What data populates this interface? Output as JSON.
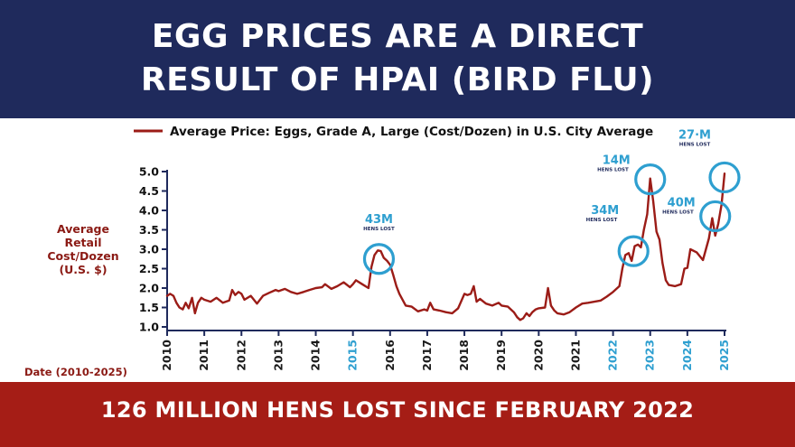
{
  "header": {
    "title_line1": "EGG PRICES ARE A DIRECT",
    "title_line2": "RESULT OF HPAI (BIRD FLU)"
  },
  "footer": {
    "text": "126 MILLION HENS LOST SINCE FEBRUARY 2022"
  },
  "colors": {
    "navy": "#1f2a5c",
    "red": "#a51d16",
    "line": "#9b1c17",
    "highlight": "#2e9fd0",
    "tick": "#1f2a5c"
  },
  "chart_data": {
    "type": "line",
    "legend": "Average Price: Eggs, Grade A, Large (Cost/Dozen) in U.S. City Average",
    "ylabel": [
      "Average",
      "Retail",
      "Cost/Dozen",
      "(U.S. $)"
    ],
    "xlabel": "Date (2010-2025)",
    "ylim": [
      1.0,
      5.0
    ],
    "xlim": [
      2010,
      2025
    ],
    "y_ticks": [
      {
        "value": 1.0,
        "label": "1.0"
      },
      {
        "value": 1.5,
        "label": "1.5"
      },
      {
        "value": 2.0,
        "label": "2.0"
      },
      {
        "value": 2.5,
        "label": "2.5"
      },
      {
        "value": 3.0,
        "label": "3.0"
      },
      {
        "value": 3.5,
        "label": "3.5"
      },
      {
        "value": 4.0,
        "label": "4.0"
      },
      {
        "value": 4.5,
        "label": "4.5"
      },
      {
        "value": 5.0,
        "label": "5.0"
      }
    ],
    "x_ticks": [
      {
        "value": 2010,
        "label": "2010",
        "highlight": false
      },
      {
        "value": 2011,
        "label": "2011",
        "highlight": false
      },
      {
        "value": 2012,
        "label": "2012",
        "highlight": false
      },
      {
        "value": 2013,
        "label": "2013",
        "highlight": false
      },
      {
        "value": 2014,
        "label": "2014",
        "highlight": false
      },
      {
        "value": 2015,
        "label": "2015",
        "highlight": true
      },
      {
        "value": 2016,
        "label": "2016",
        "highlight": false
      },
      {
        "value": 2017,
        "label": "2017",
        "highlight": false
      },
      {
        "value": 2018,
        "label": "2018",
        "highlight": false
      },
      {
        "value": 2019,
        "label": "2019",
        "highlight": false
      },
      {
        "value": 2020,
        "label": "2020",
        "highlight": false
      },
      {
        "value": 2021,
        "label": "2021",
        "highlight": false
      },
      {
        "value": 2022,
        "label": "2022",
        "highlight": true
      },
      {
        "value": 2023,
        "label": "2023",
        "highlight": true
      },
      {
        "value": 2024,
        "label": "2024",
        "highlight": true
      },
      {
        "value": 2025,
        "label": "2025",
        "highlight": true
      }
    ],
    "series": [
      {
        "name": "Average Price: Eggs, Grade A, Large",
        "points": [
          [
            2010.0,
            1.8
          ],
          [
            2010.08,
            1.85
          ],
          [
            2010.17,
            1.8
          ],
          [
            2010.25,
            1.62
          ],
          [
            2010.33,
            1.5
          ],
          [
            2010.42,
            1.45
          ],
          [
            2010.5,
            1.62
          ],
          [
            2010.58,
            1.48
          ],
          [
            2010.67,
            1.75
          ],
          [
            2010.75,
            1.35
          ],
          [
            2010.83,
            1.62
          ],
          [
            2010.92,
            1.75
          ],
          [
            2011.0,
            1.7
          ],
          [
            2011.17,
            1.65
          ],
          [
            2011.33,
            1.75
          ],
          [
            2011.5,
            1.62
          ],
          [
            2011.67,
            1.68
          ],
          [
            2011.75,
            1.95
          ],
          [
            2011.83,
            1.82
          ],
          [
            2011.92,
            1.9
          ],
          [
            2012.0,
            1.85
          ],
          [
            2012.08,
            1.7
          ],
          [
            2012.25,
            1.8
          ],
          [
            2012.42,
            1.6
          ],
          [
            2012.58,
            1.8
          ],
          [
            2012.75,
            1.88
          ],
          [
            2012.92,
            1.95
          ],
          [
            2013.0,
            1.92
          ],
          [
            2013.17,
            1.98
          ],
          [
            2013.33,
            1.9
          ],
          [
            2013.5,
            1.85
          ],
          [
            2013.67,
            1.9
          ],
          [
            2013.83,
            1.95
          ],
          [
            2014.0,
            2.0
          ],
          [
            2014.17,
            2.02
          ],
          [
            2014.25,
            2.1
          ],
          [
            2014.42,
            1.98
          ],
          [
            2014.58,
            2.05
          ],
          [
            2014.75,
            2.15
          ],
          [
            2014.92,
            2.02
          ],
          [
            2015.0,
            2.1
          ],
          [
            2015.08,
            2.2
          ],
          [
            2015.25,
            2.1
          ],
          [
            2015.42,
            2.0
          ],
          [
            2015.5,
            2.55
          ],
          [
            2015.58,
            2.85
          ],
          [
            2015.67,
            2.97
          ],
          [
            2015.75,
            2.95
          ],
          [
            2015.83,
            2.78
          ],
          [
            2015.92,
            2.7
          ],
          [
            2016.0,
            2.6
          ],
          [
            2016.08,
            2.35
          ],
          [
            2016.17,
            2.05
          ],
          [
            2016.25,
            1.85
          ],
          [
            2016.42,
            1.55
          ],
          [
            2016.58,
            1.52
          ],
          [
            2016.75,
            1.4
          ],
          [
            2016.92,
            1.45
          ],
          [
            2017.0,
            1.42
          ],
          [
            2017.08,
            1.62
          ],
          [
            2017.17,
            1.45
          ],
          [
            2017.33,
            1.42
          ],
          [
            2017.5,
            1.38
          ],
          [
            2017.67,
            1.35
          ],
          [
            2017.83,
            1.48
          ],
          [
            2018.0,
            1.85
          ],
          [
            2018.08,
            1.82
          ],
          [
            2018.17,
            1.85
          ],
          [
            2018.25,
            2.05
          ],
          [
            2018.33,
            1.65
          ],
          [
            2018.42,
            1.72
          ],
          [
            2018.58,
            1.6
          ],
          [
            2018.75,
            1.55
          ],
          [
            2018.92,
            1.62
          ],
          [
            2019.0,
            1.55
          ],
          [
            2019.17,
            1.52
          ],
          [
            2019.33,
            1.38
          ],
          [
            2019.42,
            1.25
          ],
          [
            2019.5,
            1.18
          ],
          [
            2019.58,
            1.22
          ],
          [
            2019.67,
            1.35
          ],
          [
            2019.75,
            1.28
          ],
          [
            2019.83,
            1.38
          ],
          [
            2019.92,
            1.45
          ],
          [
            2020.0,
            1.48
          ],
          [
            2020.17,
            1.5
          ],
          [
            2020.25,
            2.0
          ],
          [
            2020.33,
            1.55
          ],
          [
            2020.42,
            1.42
          ],
          [
            2020.5,
            1.35
          ],
          [
            2020.67,
            1.32
          ],
          [
            2020.83,
            1.38
          ],
          [
            2021.0,
            1.5
          ],
          [
            2021.17,
            1.6
          ],
          [
            2021.33,
            1.62
          ],
          [
            2021.5,
            1.65
          ],
          [
            2021.67,
            1.68
          ],
          [
            2021.83,
            1.78
          ],
          [
            2022.0,
            1.9
          ],
          [
            2022.17,
            2.05
          ],
          [
            2022.25,
            2.5
          ],
          [
            2022.33,
            2.85
          ],
          [
            2022.42,
            2.9
          ],
          [
            2022.5,
            2.7
          ],
          [
            2022.58,
            3.08
          ],
          [
            2022.67,
            3.12
          ],
          [
            2022.75,
            3.05
          ],
          [
            2022.83,
            3.5
          ],
          [
            2022.92,
            3.9
          ],
          [
            2023.0,
            4.82
          ],
          [
            2023.08,
            4.25
          ],
          [
            2023.17,
            3.45
          ],
          [
            2023.25,
            3.25
          ],
          [
            2023.33,
            2.65
          ],
          [
            2023.42,
            2.2
          ],
          [
            2023.5,
            2.08
          ],
          [
            2023.67,
            2.05
          ],
          [
            2023.83,
            2.1
          ],
          [
            2023.92,
            2.5
          ],
          [
            2024.0,
            2.52
          ],
          [
            2024.08,
            3.0
          ],
          [
            2024.25,
            2.92
          ],
          [
            2024.42,
            2.72
          ],
          [
            2024.58,
            3.28
          ],
          [
            2024.67,
            3.8
          ],
          [
            2024.75,
            3.35
          ],
          [
            2024.83,
            3.65
          ],
          [
            2024.92,
            4.15
          ],
          [
            2025.0,
            4.95
          ]
        ]
      }
    ],
    "annotations": [
      {
        "big": "43M",
        "small": "HENS LOST",
        "x": 2015.7,
        "y": 2.75
      },
      {
        "big": "34M",
        "small": "HENS LOST",
        "x": 2022.55,
        "y": 2.95
      },
      {
        "big": "14M",
        "small": "HENS LOST",
        "x": 2023.0,
        "y": 4.8
      },
      {
        "big": "40M",
        "small": "HENS LOST",
        "x": 2024.75,
        "y": 3.85
      },
      {
        "big": "27·M",
        "small": "HENS LOST",
        "x": 2025.0,
        "y": 4.85
      }
    ]
  }
}
